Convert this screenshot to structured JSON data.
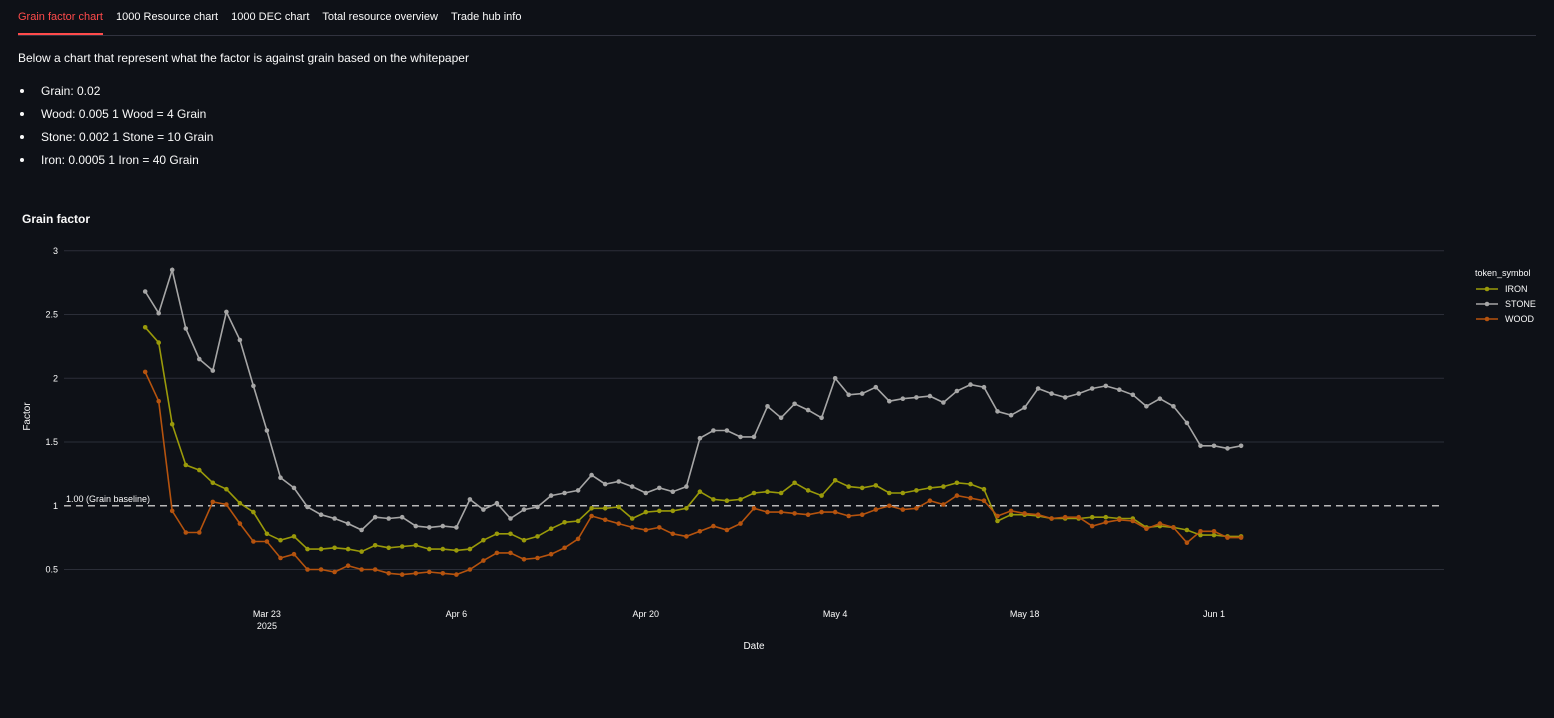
{
  "tabs": [
    {
      "label": "Grain factor chart",
      "active": true
    },
    {
      "label": "1000 Resource chart",
      "active": false
    },
    {
      "label": "1000 DEC chart",
      "active": false
    },
    {
      "label": "Total resource overview",
      "active": false
    },
    {
      "label": "Trade hub info",
      "active": false
    }
  ],
  "intro": "Below a chart that represent what the factor is against grain based on the whitepaper",
  "factors": [
    "Grain: 0.02",
    "Wood: 0.005 1 Wood = 4 Grain",
    "Stone: 0.002 1 Stone = 10 Grain",
    "Iron: 0.0005 1 Iron = 40 Grain"
  ],
  "chart_data": {
    "type": "line",
    "title": "Grain factor",
    "xlabel": "Date",
    "ylabel": "Factor",
    "x_start": "2025-03-14",
    "x_range": [
      "2025-03-08",
      "2025-06-18"
    ],
    "ylim": [
      0.3,
      3.1
    ],
    "y_ticks": [
      0.5,
      1,
      1.5,
      2,
      2.5,
      3
    ],
    "y_tick_labels": [
      "0.5",
      "1",
      "1.5",
      "2",
      "2.5",
      "3"
    ],
    "x_ticks": [
      {
        "date": "2025-03-23",
        "label": "Mar 23",
        "sublabel": "2025"
      },
      {
        "date": "2025-04-06",
        "label": "Apr 6",
        "sublabel": ""
      },
      {
        "date": "2025-04-20",
        "label": "Apr 20",
        "sublabel": ""
      },
      {
        "date": "2025-05-04",
        "label": "May 4",
        "sublabel": ""
      },
      {
        "date": "2025-05-18",
        "label": "May 18",
        "sublabel": ""
      },
      {
        "date": "2025-06-01",
        "label": "Jun 1",
        "sublabel": ""
      }
    ],
    "baseline": {
      "value": 1.0,
      "label": "1.00 (Grain baseline)"
    },
    "grid": true,
    "legend": {
      "title": "token_symbol",
      "position": "right"
    },
    "series": [
      {
        "name": "IRON",
        "color": "#9a9a0a",
        "values": [
          2.4,
          2.28,
          1.64,
          1.32,
          1.28,
          1.18,
          1.13,
          1.02,
          0.95,
          0.78,
          0.73,
          0.76,
          0.66,
          0.66,
          0.67,
          0.66,
          0.64,
          0.69,
          0.67,
          0.68,
          0.69,
          0.66,
          0.66,
          0.65,
          0.66,
          0.73,
          0.78,
          0.78,
          0.73,
          0.76,
          0.82,
          0.87,
          0.88,
          0.98,
          0.98,
          0.99,
          0.9,
          0.95,
          0.96,
          0.96,
          0.98,
          1.11,
          1.05,
          1.04,
          1.05,
          1.1,
          1.11,
          1.1,
          1.18,
          1.12,
          1.08,
          1.2,
          1.15,
          1.14,
          1.16,
          1.1,
          1.1,
          1.12,
          1.14,
          1.15,
          1.18,
          1.17,
          1.13,
          0.88,
          0.93,
          0.93,
          0.92,
          0.9,
          0.9,
          0.9,
          0.91,
          0.91,
          0.9,
          0.9,
          0.83,
          0.84,
          0.83,
          0.81,
          0.77,
          0.77,
          0.76,
          0.76
        ]
      },
      {
        "name": "STONE",
        "color": "#a6a6a6",
        "values": [
          2.68,
          2.51,
          2.85,
          2.39,
          2.15,
          2.06,
          2.52,
          2.3,
          1.94,
          1.59,
          1.22,
          1.14,
          0.99,
          0.93,
          0.9,
          0.86,
          0.81,
          0.91,
          0.9,
          0.91,
          0.84,
          0.83,
          0.84,
          0.83,
          1.05,
          0.97,
          1.02,
          0.9,
          0.97,
          0.99,
          1.08,
          1.1,
          1.12,
          1.24,
          1.17,
          1.19,
          1.15,
          1.1,
          1.14,
          1.11,
          1.15,
          1.53,
          1.59,
          1.59,
          1.54,
          1.54,
          1.78,
          1.69,
          1.8,
          1.75,
          1.69,
          2.0,
          1.87,
          1.88,
          1.93,
          1.82,
          1.84,
          1.85,
          1.86,
          1.81,
          1.9,
          1.95,
          1.93,
          1.74,
          1.71,
          1.77,
          1.92,
          1.88,
          1.85,
          1.88,
          1.92,
          1.94,
          1.91,
          1.87,
          1.78,
          1.84,
          1.78,
          1.65,
          1.47,
          1.47,
          1.45,
          1.47
        ]
      },
      {
        "name": "WOOD",
        "color": "#b5530e",
        "values": [
          2.05,
          1.82,
          0.96,
          0.79,
          0.79,
          1.03,
          1.01,
          0.86,
          0.72,
          0.72,
          0.59,
          0.62,
          0.5,
          0.5,
          0.48,
          0.53,
          0.5,
          0.5,
          0.47,
          0.46,
          0.47,
          0.48,
          0.47,
          0.46,
          0.5,
          0.57,
          0.63,
          0.63,
          0.58,
          0.59,
          0.62,
          0.67,
          0.74,
          0.92,
          0.89,
          0.86,
          0.83,
          0.81,
          0.83,
          0.78,
          0.76,
          0.8,
          0.84,
          0.81,
          0.86,
          0.98,
          0.95,
          0.95,
          0.94,
          0.93,
          0.95,
          0.95,
          0.92,
          0.93,
          0.97,
          1.0,
          0.97,
          0.98,
          1.04,
          1.01,
          1.08,
          1.06,
          1.04,
          0.92,
          0.96,
          0.94,
          0.93,
          0.9,
          0.91,
          0.91,
          0.84,
          0.87,
          0.89,
          0.88,
          0.82,
          0.86,
          0.83,
          0.71,
          0.8,
          0.8,
          0.75,
          0.75
        ]
      }
    ]
  }
}
